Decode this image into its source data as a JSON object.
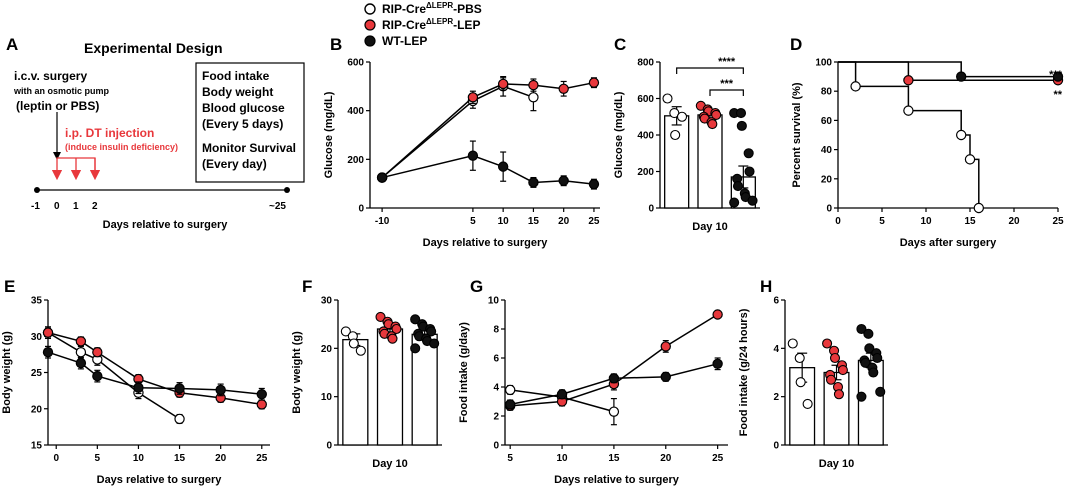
{
  "legend": [
    {
      "name": "RIP-Cre",
      "sup": "ΔLEPR",
      "suffix": "-PBS",
      "marker": "open"
    },
    {
      "name": "RIP-Cre",
      "sup": "ΔLEPR",
      "suffix": "-LEP",
      "marker": "red"
    },
    {
      "name": "WT-LEP",
      "sup": "",
      "suffix": "",
      "marker": "black"
    }
  ],
  "colors": {
    "pbs_fill": "#ffffff",
    "lep_fill": "#e8383c",
    "wt_fill": "#111111",
    "design_red": "#e8383c",
    "line": "#000000"
  },
  "panel_letters": {
    "A": "A",
    "B": "B",
    "C": "C",
    "D": "D",
    "E": "E",
    "F": "F",
    "G": "G",
    "H": "H"
  },
  "design": {
    "title": "Experimental Design",
    "surgery_title": "i.c.v. surgery",
    "surgery_sub": "with an osmotic pump",
    "surgery_drug": "(leptin or PBS)",
    "dt_title": "i.p. DT  injection",
    "dt_sub": "(induce insulin deficiency)",
    "box_lines": [
      "Food intake",
      "Body weight",
      "Blood glucose",
      "(Every 5 days)",
      "",
      "Monitor Survival",
      "(Every day)"
    ],
    "timeline_ticks": [
      "-1",
      "0",
      "1",
      "2",
      "~25"
    ],
    "xlabel": "Days relative to surgery"
  },
  "chart_data": [
    {
      "id": "B",
      "type": "line",
      "title": "",
      "xlabel": "Days relative to surgery",
      "ylabel": "Glucose (mg/dL)",
      "xlim": [
        -12,
        26
      ],
      "ylim": [
        0,
        600
      ],
      "xticks": [
        -10,
        5,
        10,
        15,
        20,
        25
      ],
      "yticks": [
        0,
        200,
        400,
        600
      ],
      "series": [
        {
          "name": "RIP-Cre-PBS",
          "marker": "open",
          "x": [
            -10,
            5,
            10,
            15
          ],
          "y": [
            125,
            440,
            500,
            455
          ],
          "err": [
            10,
            30,
            40,
            55
          ]
        },
        {
          "name": "RIP-Cre-LEP",
          "marker": "red",
          "x": [
            -10,
            5,
            10,
            15,
            20,
            25
          ],
          "y": [
            125,
            455,
            510,
            505,
            490,
            515
          ],
          "err": [
            10,
            25,
            25,
            25,
            30,
            20
          ]
        },
        {
          "name": "WT-LEP",
          "marker": "black",
          "x": [
            -10,
            5,
            10,
            15,
            20,
            25
          ],
          "y": [
            125,
            215,
            170,
            105,
            112,
            98
          ],
          "err": [
            10,
            60,
            60,
            20,
            20,
            20
          ]
        }
      ]
    },
    {
      "id": "C",
      "type": "bar",
      "title": "",
      "xlabel": "Day 10",
      "ylabel": "Glucose (mg/dL)",
      "ylim": [
        0,
        800
      ],
      "yticks": [
        0,
        200,
        400,
        600,
        800
      ],
      "groups": [
        {
          "name": "RIP-Cre-PBS",
          "marker": "open",
          "mean": 505,
          "sem": 50,
          "points": [
            600,
            520,
            400,
            500
          ]
        },
        {
          "name": "RIP-Cre-LEP",
          "marker": "red",
          "mean": 510,
          "sem": 25,
          "points": [
            560,
            540,
            530,
            520,
            510,
            500,
            490,
            470,
            460
          ]
        },
        {
          "name": "WT-LEP",
          "marker": "black",
          "mean": 170,
          "sem": 60,
          "points": [
            520,
            520,
            450,
            300,
            200,
            160,
            120,
            80,
            60,
            40,
            30
          ]
        }
      ],
      "significance": [
        {
          "label": "****",
          "from": 0,
          "to": 2,
          "level": "high"
        },
        {
          "label": "***",
          "from": 1,
          "to": 2,
          "level": "low"
        }
      ]
    },
    {
      "id": "D",
      "type": "line",
      "title": "",
      "xlabel": "Days after surgery",
      "ylabel": "Percent survival (%)",
      "xlim": [
        0,
        25
      ],
      "ylim": [
        0,
        100
      ],
      "xticks": [
        0,
        5,
        10,
        15,
        20,
        25
      ],
      "yticks": [
        0,
        20,
        40,
        60,
        80,
        100
      ],
      "series": [
        {
          "name": "RIP-Cre-PBS",
          "marker": "open",
          "x": [
            0,
            2,
            8,
            14,
            15,
            16
          ],
          "y": [
            100,
            83.3,
            66.7,
            50,
            33.3,
            0
          ]
        },
        {
          "name": "RIP-Cre-LEP",
          "marker": "red",
          "x": [
            0,
            8,
            25
          ],
          "y": [
            100,
            87.5,
            87.5
          ]
        },
        {
          "name": "WT-LEP",
          "marker": "black",
          "x": [
            0,
            14,
            25
          ],
          "y": [
            100,
            90,
            90
          ]
        }
      ],
      "annotations": [
        "***",
        "**"
      ]
    },
    {
      "id": "E",
      "type": "line",
      "title": "",
      "xlabel": "Days relative to surgery",
      "ylabel": "Body weight (g)",
      "xlim": [
        -1,
        26
      ],
      "ylim": [
        15,
        35
      ],
      "xticks": [
        0,
        5,
        10,
        15,
        20,
        25
      ],
      "yticks": [
        15,
        20,
        25,
        30,
        35
      ],
      "series": [
        {
          "name": "RIP-Cre-PBS",
          "marker": "open",
          "x": [
            -1,
            3,
            5,
            10,
            15
          ],
          "y": [
            30.5,
            27.8,
            26.8,
            22.2,
            18.6
          ],
          "err": [
            0.8,
            0.8,
            0.8,
            0.8,
            0.6
          ]
        },
        {
          "name": "RIP-Cre-LEP",
          "marker": "red",
          "x": [
            -1,
            3,
            5,
            10,
            15,
            20,
            25
          ],
          "y": [
            30.5,
            29.3,
            27.8,
            24.1,
            22.2,
            21.5,
            20.6
          ],
          "err": [
            0.6,
            0.6,
            0.6,
            0.6,
            0.6,
            0.6,
            0.6
          ]
        },
        {
          "name": "WT-LEP",
          "marker": "black",
          "x": [
            -1,
            3,
            5,
            10,
            15,
            20,
            25
          ],
          "y": [
            27.8,
            26.3,
            24.5,
            22.9,
            22.8,
            22.6,
            22.0
          ],
          "err": [
            0.8,
            0.8,
            0.8,
            0.8,
            0.8,
            0.8,
            0.8
          ]
        }
      ]
    },
    {
      "id": "F",
      "type": "bar",
      "title": "",
      "xlabel": "Day 10",
      "ylabel": "Body weight (g)",
      "ylim": [
        0,
        30
      ],
      "yticks": [
        0,
        10,
        20,
        30
      ],
      "groups": [
        {
          "name": "RIP-Cre-PBS",
          "marker": "open",
          "mean": 21.8,
          "sem": 1.2,
          "points": [
            23.5,
            22.5,
            21.0,
            19.5
          ]
        },
        {
          "name": "RIP-Cre-LEP",
          "marker": "red",
          "mean": 24.0,
          "sem": 0.6,
          "points": [
            26.5,
            25.5,
            25,
            24.5,
            24,
            23.5,
            23,
            22.5,
            22
          ]
        },
        {
          "name": "WT-LEP",
          "marker": "black",
          "mean": 22.9,
          "sem": 0.7,
          "points": [
            26,
            25,
            24.5,
            24,
            23.5,
            23,
            22.5,
            22,
            21.5,
            21,
            20
          ]
        }
      ]
    },
    {
      "id": "G",
      "type": "line",
      "title": "",
      "xlabel": "Days relative to surgery",
      "ylabel": "Food intake (g/day)",
      "xlim": [
        4.5,
        26
      ],
      "ylim": [
        0,
        10
      ],
      "xticks": [
        5,
        10,
        15,
        20,
        25
      ],
      "yticks": [
        0,
        2,
        4,
        6,
        8,
        10
      ],
      "series": [
        {
          "name": "RIP-Cre-PBS",
          "marker": "open",
          "x": [
            5,
            10,
            15
          ],
          "y": [
            3.8,
            3.3,
            2.3
          ],
          "err": [
            0.3,
            0.3,
            0.9
          ]
        },
        {
          "name": "RIP-Cre-LEP",
          "marker": "red",
          "x": [
            5,
            10,
            15,
            20,
            25
          ],
          "y": [
            2.7,
            3.0,
            4.2,
            6.8,
            9.0
          ],
          "err": [
            0.3,
            0.3,
            0.4,
            0.4,
            0.2
          ]
        },
        {
          "name": "WT-LEP",
          "marker": "black",
          "x": [
            5,
            10,
            15,
            20,
            25
          ],
          "y": [
            2.8,
            3.5,
            4.6,
            4.7,
            5.6
          ],
          "err": [
            0.3,
            0.3,
            0.3,
            0.3,
            0.4
          ]
        }
      ]
    },
    {
      "id": "H",
      "type": "bar",
      "title": "",
      "xlabel": "Day 10",
      "ylabel": "Food intake (g/24 hours)",
      "ylim": [
        0,
        6
      ],
      "yticks": [
        0,
        2,
        4,
        6
      ],
      "groups": [
        {
          "name": "RIP-Cre-PBS",
          "marker": "open",
          "mean": 3.2,
          "sem": 0.6,
          "points": [
            4.2,
            3.6,
            2.6,
            1.7
          ]
        },
        {
          "name": "RIP-Cre-LEP",
          "marker": "red",
          "mean": 3.0,
          "sem": 0.3,
          "points": [
            4.2,
            3.9,
            3.6,
            3.3,
            3.1,
            2.9,
            2.7,
            2.4,
            2.1
          ]
        },
        {
          "name": "WT-LEP",
          "marker": "black",
          "mean": 3.5,
          "sem": 0.3,
          "points": [
            4.8,
            4.6,
            4.0,
            3.8,
            3.6,
            3.5,
            3.4,
            3.2,
            3.0,
            2.2,
            2.0
          ]
        }
      ]
    }
  ]
}
